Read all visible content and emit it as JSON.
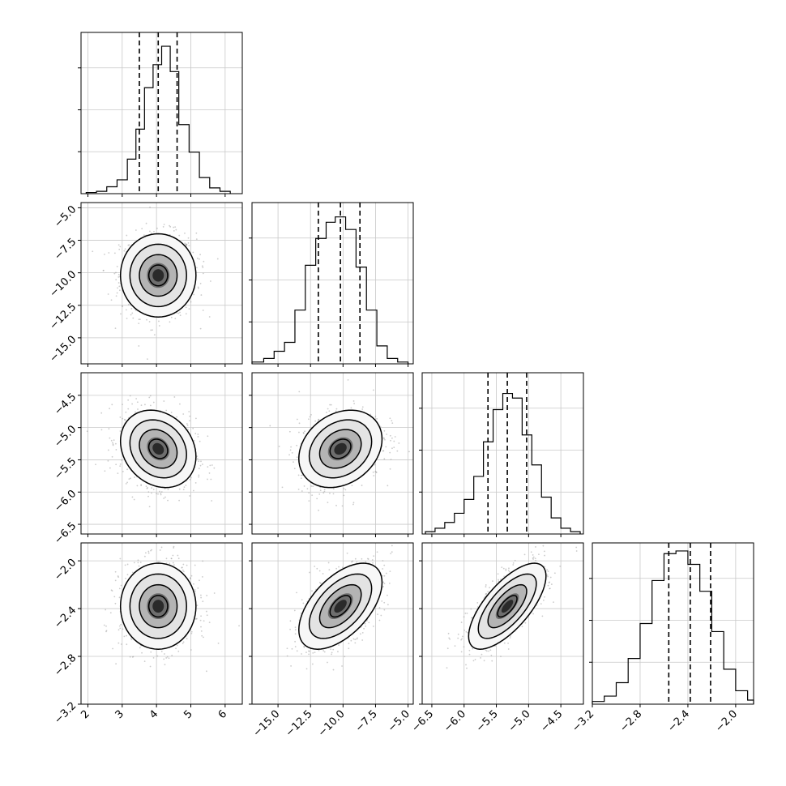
{
  "chart_data": {
    "type": "corner",
    "dimensions": 4,
    "grid": true,
    "title": "",
    "parameter_labels": [],
    "colors": {
      "points": "#9a9a9a",
      "contours": "#000000",
      "hist": "#000000",
      "grid": "#c8c8c8"
    },
    "axes": [
      {
        "range": [
          1.8,
          6.5
        ],
        "ticks": [
          2,
          3,
          4,
          5,
          6
        ],
        "tick_labels": [
          "2",
          "3",
          "4",
          "5",
          "6"
        ]
      },
      {
        "range": [
          -17,
          -4.6
        ],
        "ticks": [
          -15.0,
          -12.5,
          -10.0,
          -7.5,
          -5.0
        ],
        "tick_labels": [
          "−15.0",
          "−12.5",
          "−10.0",
          "−7.5",
          "−5.0"
        ]
      },
      {
        "range": [
          -6.65,
          -4.15
        ],
        "ticks": [
          -6.5,
          -6.0,
          -5.5,
          -5.0,
          -4.5
        ],
        "tick_labels": [
          "−6.5",
          "−6.0",
          "−5.5",
          "−5.0",
          "−4.5"
        ]
      },
      {
        "range": [
          -3.2,
          -1.85
        ],
        "ticks": [
          -3.2,
          -2.8,
          -2.4,
          -2.0
        ],
        "tick_labels": [
          "−3.2",
          "−2.8",
          "−2.4",
          "−2.0"
        ]
      }
    ],
    "quantiles": [
      [
        3.5,
        4.05,
        4.6
      ],
      [
        -11.9,
        -10.2,
        -8.7
      ],
      [
        -5.63,
        -5.33,
        -5.03
      ],
      [
        -2.56,
        -2.38,
        -2.21
      ]
    ],
    "hist_ymax": [
      700,
      450,
      700,
      600
    ],
    "histograms": [
      {
        "bins": [
          1.95,
          2.25,
          2.55,
          2.85,
          3.15,
          3.4,
          3.65,
          3.9,
          4.15,
          4.4,
          4.65,
          4.95,
          5.25,
          5.55,
          5.85,
          6.15
        ],
        "counts": [
          5,
          10,
          30,
          60,
          150,
          280,
          460,
          560,
          640,
          530,
          300,
          180,
          70,
          25,
          10
        ]
      },
      {
        "bins": [
          -17.0,
          -16.1,
          -15.3,
          -14.5,
          -13.7,
          -12.9,
          -12.1,
          -11.3,
          -10.6,
          -9.8,
          -9.0,
          -8.2,
          -7.4,
          -6.6,
          -5.8,
          -5.0
        ],
        "counts": [
          5,
          15,
          35,
          60,
          150,
          275,
          350,
          395,
          410,
          375,
          270,
          150,
          50,
          15,
          5
        ]
      },
      {
        "bins": [
          -6.6,
          -6.45,
          -6.3,
          -6.15,
          -6.0,
          -5.85,
          -5.7,
          -5.55,
          -5.4,
          -5.25,
          -5.1,
          -4.95,
          -4.8,
          -4.65,
          -4.5,
          -4.35,
          -4.2
        ],
        "counts": [
          10,
          25,
          50,
          90,
          150,
          250,
          400,
          540,
          610,
          590,
          430,
          300,
          160,
          70,
          25,
          10
        ]
      },
      {
        "bins": [
          -3.2,
          -3.1,
          -3.0,
          -2.9,
          -2.8,
          -2.7,
          -2.6,
          -2.5,
          -2.4,
          -2.3,
          -2.2,
          -2.1,
          -2.0,
          -1.9,
          -1.85
        ],
        "counts": [
          10,
          30,
          80,
          170,
          300,
          460,
          560,
          570,
          520,
          420,
          270,
          130,
          50,
          15
        ]
      }
    ],
    "pairs": [
      {
        "x_dim": 0,
        "y_dim": 1,
        "mean": [
          4.05,
          -10.2
        ],
        "sd": [
          0.55,
          1.6
        ],
        "rho": 0.0,
        "levels": [
          0.5,
          1.0,
          1.5,
          2.0
        ]
      },
      {
        "x_dim": 0,
        "y_dim": 2,
        "mean": [
          4.05,
          -5.33
        ],
        "sd": [
          0.55,
          0.3
        ],
        "rho": -0.2,
        "levels": [
          0.5,
          1.0,
          1.5,
          2.0
        ]
      },
      {
        "x_dim": 1,
        "y_dim": 2,
        "mean": [
          -10.2,
          -5.33
        ],
        "sd": [
          1.6,
          0.3
        ],
        "rho": 0.25,
        "levels": [
          0.5,
          1.0,
          1.5,
          2.0
        ]
      },
      {
        "x_dim": 0,
        "y_dim": 3,
        "mean": [
          4.05,
          -2.38
        ],
        "sd": [
          0.55,
          0.18
        ],
        "rho": 0.0,
        "levels": [
          0.5,
          1.0,
          1.5,
          2.0
        ]
      },
      {
        "x_dim": 1,
        "y_dim": 3,
        "mean": [
          -10.2,
          -2.38
        ],
        "sd": [
          1.6,
          0.18
        ],
        "rho": 0.55,
        "levels": [
          0.5,
          1.0,
          1.5,
          2.0
        ]
      },
      {
        "x_dim": 2,
        "y_dim": 3,
        "mean": [
          -5.33,
          -2.38
        ],
        "sd": [
          0.3,
          0.18
        ],
        "rho": 0.7,
        "levels": [
          0.5,
          1.0,
          1.5,
          2.0
        ]
      }
    ]
  }
}
